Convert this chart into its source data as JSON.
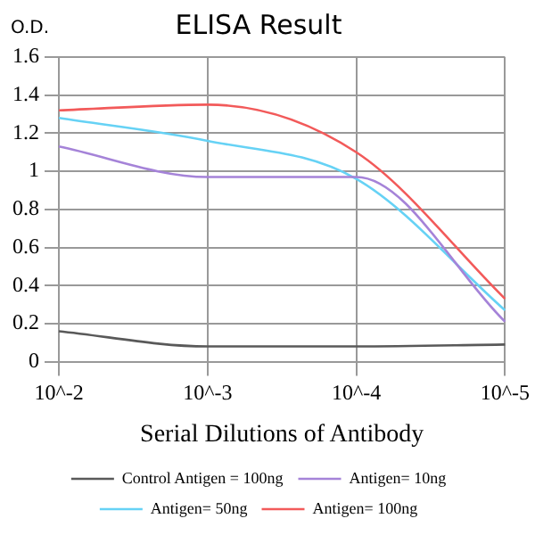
{
  "chart_data": {
    "type": "line",
    "title": "ELISA Result",
    "ylabel": "O.D.",
    "xlabel": "Serial Dilutions of Antibody",
    "categories": [
      "10^-2",
      "10^-3",
      "10^-4",
      "10^-5"
    ],
    "series": [
      {
        "name": "Control Antigen = 100ng",
        "color": "#595959",
        "values": [
          0.16,
          0.08,
          0.08,
          0.09
        ]
      },
      {
        "name": "Antigen= 10ng",
        "color": "#a583d8",
        "values": [
          1.13,
          0.97,
          0.97,
          0.21
        ]
      },
      {
        "name": "Antigen= 50ng",
        "color": "#66d2f5",
        "values": [
          1.28,
          1.16,
          0.96,
          0.27
        ]
      },
      {
        "name": "Antigen= 100ng",
        "color": "#f25a5a",
        "values": [
          1.32,
          1.35,
          1.1,
          0.33
        ]
      }
    ],
    "ylim": [
      0,
      1.6
    ],
    "yticks": [
      0,
      0.2,
      0.4,
      0.6,
      0.8,
      1,
      1.2,
      1.4,
      1.6
    ],
    "grid": true,
    "legend": "bottom",
    "marker": "none",
    "line_style": "solid"
  }
}
